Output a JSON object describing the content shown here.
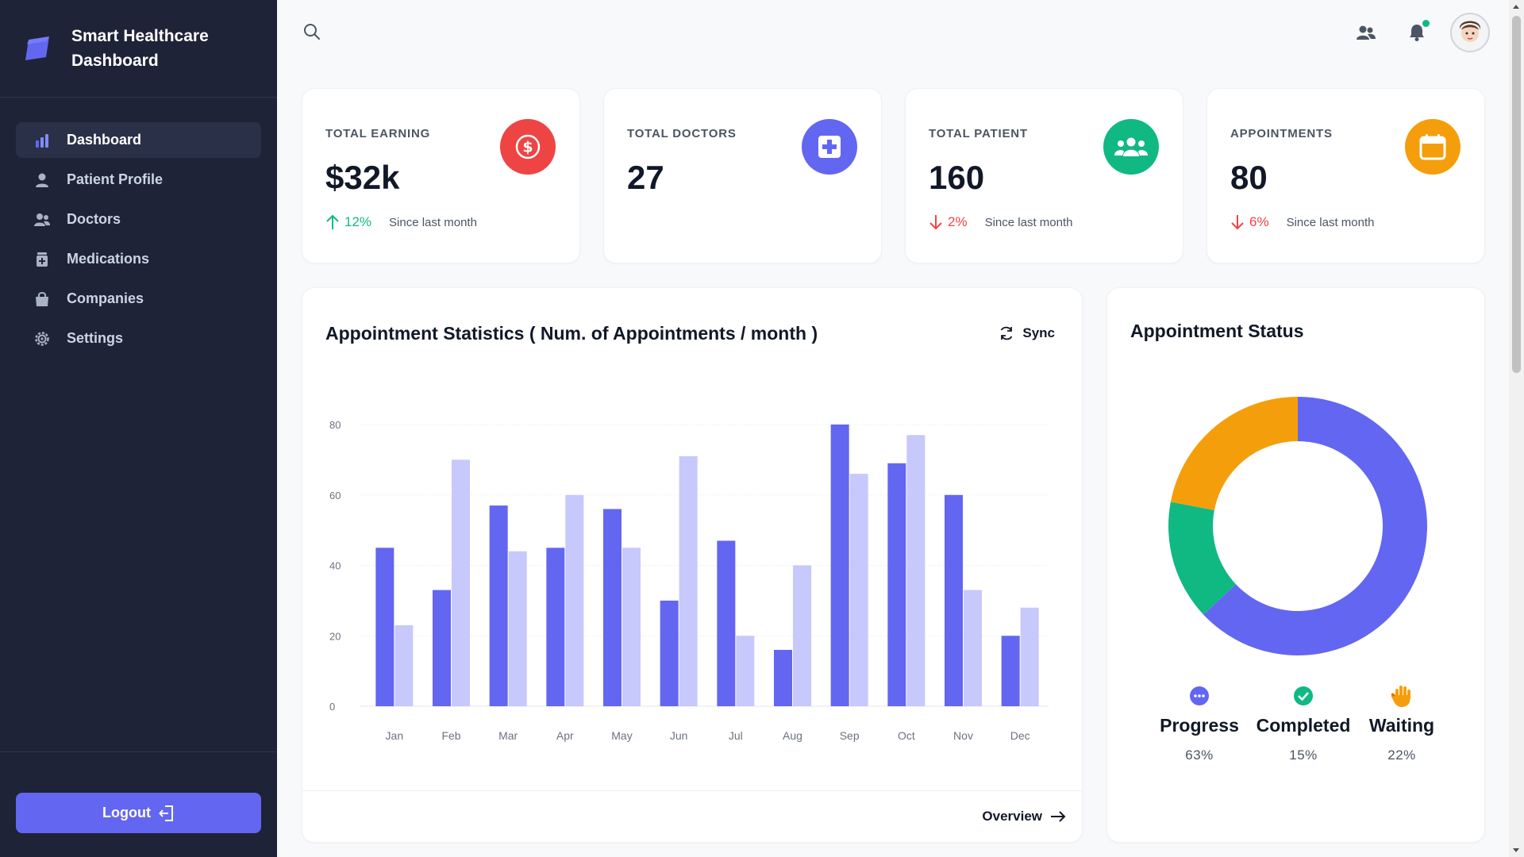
{
  "brand": {
    "title": "Smart Healthcare Dashboard"
  },
  "nav": [
    {
      "label": "Dashboard",
      "icon": "bar-chart-icon",
      "active": true
    },
    {
      "label": "Patient Profile",
      "icon": "user-icon",
      "active": false
    },
    {
      "label": "Doctors",
      "icon": "users-icon",
      "active": false
    },
    {
      "label": "Medications",
      "icon": "medicine-bottle-icon",
      "active": false
    },
    {
      "label": "Companies",
      "icon": "shopping-bag-icon",
      "active": false
    },
    {
      "label": "Settings",
      "icon": "gear-icon",
      "active": false
    }
  ],
  "logout_label": "Logout",
  "stats": [
    {
      "title": "TOTAL EARNING",
      "value": "$32k",
      "change": "12%",
      "direction": "up",
      "since": "Since last month",
      "icon": "dollar-icon",
      "color": "#ef4444"
    },
    {
      "title": "TOTAL DOCTORS",
      "value": "27",
      "change": "",
      "direction": "",
      "since": "",
      "icon": "medical-cross-icon",
      "color": "#6366f1"
    },
    {
      "title": "TOTAL PATIENT",
      "value": "160",
      "change": "2%",
      "direction": "down",
      "since": "Since last month",
      "icon": "group-icon",
      "color": "#10b981"
    },
    {
      "title": "APPOINTMENTS",
      "value": "80",
      "change": "6%",
      "direction": "down",
      "since": "Since last month",
      "icon": "calendar-icon",
      "color": "#f59e0b"
    }
  ],
  "bar_card": {
    "title": "Appointment Statistics ( Num. of Appointments / month )",
    "sync_label": "Sync",
    "overview_label": "Overview"
  },
  "donut_card": {
    "title": "Appointment Status"
  },
  "colors": {
    "accent": "#6366f1",
    "accent_light": "#c7c8fb",
    "success": "#10b981",
    "warning": "#f59e0b",
    "danger": "#ef4444"
  },
  "chart_data": [
    {
      "type": "bar",
      "title": "Appointment Statistics ( Num. of Appointments / month )",
      "categories": [
        "Jan",
        "Feb",
        "Mar",
        "Apr",
        "May",
        "Jun",
        "Jul",
        "Aug",
        "Sep",
        "Oct",
        "Nov",
        "Dec"
      ],
      "series": [
        {
          "values": [
            45,
            33,
            57,
            45,
            56,
            30,
            47,
            16,
            80,
            69,
            60,
            20
          ],
          "color": "#6366f1"
        },
        {
          "values": [
            23,
            70,
            44,
            60,
            45,
            71,
            20,
            40,
            66,
            77,
            33,
            28
          ],
          "color": "#c7c8fb"
        }
      ],
      "y_ticks": [
        0,
        20,
        40,
        60,
        80
      ],
      "ylim": [
        0,
        80
      ],
      "grid": true
    },
    {
      "type": "pie",
      "title": "Appointment Status",
      "donut": true,
      "slices": [
        {
          "label": "Progress",
          "value": 63,
          "display": "63%",
          "color": "#6366f1",
          "icon": "dots-icon"
        },
        {
          "label": "Completed",
          "value": 15,
          "display": "15%",
          "color": "#10b981",
          "icon": "check-circle-icon"
        },
        {
          "label": "Waiting",
          "value": 22,
          "display": "22%",
          "color": "#f59e0b",
          "icon": "hand-icon"
        }
      ]
    }
  ]
}
